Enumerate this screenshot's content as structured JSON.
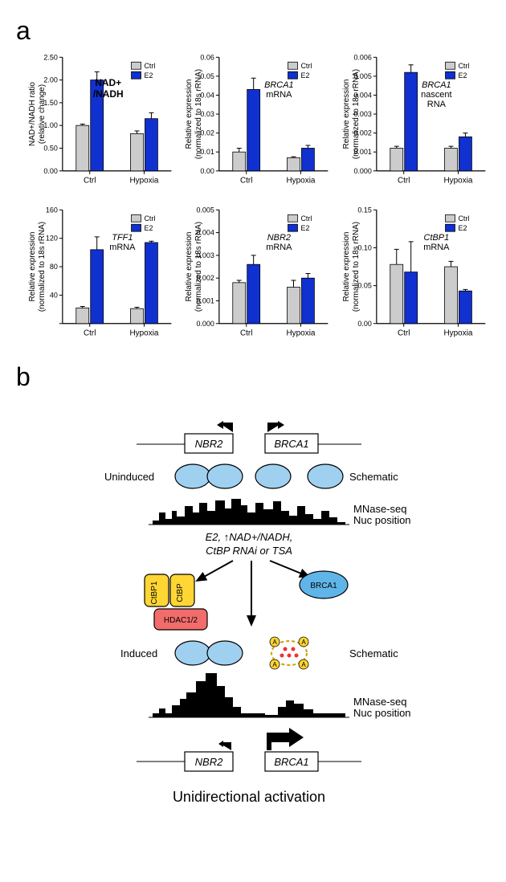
{
  "panelA": {
    "label": "a",
    "legend": {
      "ctrl": "Ctrl",
      "e2": "E2"
    },
    "ctrl_color": "#cccccc",
    "e2_color": "#1030d0",
    "xcats": [
      "Ctrl",
      "Hypoxia"
    ],
    "charts": [
      {
        "ytitle1": "NAD+/NADH ratio",
        "ytitle2": "(relative change)",
        "title_special": "NAD+\n/NADH",
        "ymax": 2.5,
        "ystep": 0.5,
        "bars": [
          {
            "ctrl": 1.0,
            "e2": 2.0,
            "ctrl_err": 0.03,
            "e2_err": 0.18
          },
          {
            "ctrl": 0.82,
            "e2": 1.15,
            "ctrl_err": 0.06,
            "e2_err": 0.13
          }
        ]
      },
      {
        "ytitle1": "Relative expression",
        "ytitle2": "(normalized to 18s rRNA)",
        "title_lines": [
          "BRCA1",
          "mRNA"
        ],
        "title_italic": [
          true,
          false
        ],
        "ymax": 0.06,
        "ystep": 0.01,
        "bars": [
          {
            "ctrl": 0.01,
            "e2": 0.043,
            "ctrl_err": 0.002,
            "e2_err": 0.006
          },
          {
            "ctrl": 0.007,
            "e2": 0.012,
            "ctrl_err": 0.0005,
            "e2_err": 0.0015
          }
        ]
      },
      {
        "ytitle1": "Relative expression",
        "ytitle2": "(normalized to 18s rRNA)",
        "title_lines": [
          "BRCA1",
          "nascent",
          "RNA"
        ],
        "title_italic": [
          true,
          false,
          false
        ],
        "ymax": 0.006,
        "ystep": 0.001,
        "bars": [
          {
            "ctrl": 0.0012,
            "e2": 0.0052,
            "ctrl_err": 0.0001,
            "e2_err": 0.0004
          },
          {
            "ctrl": 0.0012,
            "e2": 0.0018,
            "ctrl_err": 0.0001,
            "e2_err": 0.0002
          }
        ]
      },
      {
        "ytitle1": "Relative expression",
        "ytitle2": "(normalized to 18s rRNA)",
        "title_lines": [
          "TFF1",
          "mRNA"
        ],
        "title_italic": [
          true,
          false
        ],
        "ymax": 160,
        "ystep": 40,
        "start_at_zero": false,
        "ymin_shown": 20,
        "bars": [
          {
            "ctrl": 22,
            "e2": 104,
            "ctrl_err": 2,
            "e2_err": 18
          },
          {
            "ctrl": 21,
            "e2": 114,
            "ctrl_err": 2,
            "e2_err": 2
          }
        ]
      },
      {
        "ytitle1": "Relative expression",
        "ytitle2": "(normalized to 18s rRNA)",
        "title_lines": [
          "NBR2",
          "mRNA"
        ],
        "title_italic": [
          true,
          false
        ],
        "ymax": 0.005,
        "ystep": 0.001,
        "bars": [
          {
            "ctrl": 0.0018,
            "e2": 0.0026,
            "ctrl_err": 0.0001,
            "e2_err": 0.0004
          },
          {
            "ctrl": 0.0016,
            "e2": 0.002,
            "ctrl_err": 0.0003,
            "e2_err": 0.0002
          }
        ]
      },
      {
        "ytitle1": "Relative expression",
        "ytitle2": "(normalized to 18s rRNA)",
        "title_lines": [
          "CtBP1",
          "mRNA"
        ],
        "title_italic": [
          true,
          false
        ],
        "ymax": 0.15,
        "ystep": 0.05,
        "bars": [
          {
            "ctrl": 0.078,
            "e2": 0.068,
            "ctrl_err": 0.02,
            "e2_err": 0.04
          },
          {
            "ctrl": 0.075,
            "e2": 0.043,
            "ctrl_err": 0.007,
            "e2_err": 0.002
          }
        ]
      }
    ]
  },
  "panelB": {
    "label": "b",
    "gene_left": "NBR2",
    "gene_right": "BRCA1",
    "uninduced": "Uninduced",
    "induced": "Induced",
    "schematic": "Schematic",
    "mnase": "MNase-seq",
    "nucpos": "Nuc position",
    "treatments_line1": "E2, ↑NAD+/NADH,",
    "treatments_line2": "CtBP RNAi or TSA",
    "ctbp1": "CtBP1",
    "ctbp": "CtBP",
    "hdac": "HDAC1/2",
    "brca1": "BRCA1",
    "footer": "Unidirectional activation"
  }
}
